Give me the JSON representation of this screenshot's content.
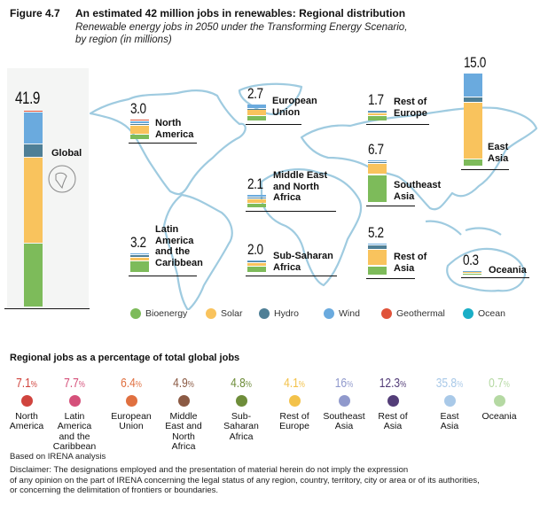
{
  "figure_label": "Figure 4.7",
  "title": "An estimated 42 million jobs in renewables: Regional distribution",
  "subtitle_line1": "Renewable energy jobs in 2050 under the Transforming Energy Scenario,",
  "subtitle_line2": "by region (in millions)",
  "colors": {
    "Bioenergy": "#7dbb5a",
    "Solar": "#f9c35d",
    "Hydro": "#4f7f96",
    "Wind": "#6aaade",
    "Geothermal": "#e0533a",
    "Ocean": "#1aaec6"
  },
  "chart_data": [
    {
      "type": "bar",
      "stacked": true,
      "unit": "millions",
      "series_order": [
        "Bioenergy",
        "Solar",
        "Hydro",
        "Wind",
        "Geothermal",
        "Ocean"
      ],
      "regions": [
        {
          "name": "Global",
          "total": "41.9",
          "values": {
            "Bioenergy": 13.6,
            "Solar": 18.3,
            "Hydro": 2.8,
            "Wind": 6.8,
            "Geothermal": 0.4,
            "Ocean": 0
          }
        },
        {
          "name": "North America",
          "total": "3.0",
          "values": {
            "Bioenergy": 0.9,
            "Solar": 1.4,
            "Hydro": 0.1,
            "Wind": 0.5,
            "Geothermal": 0.1,
            "Ocean": 0
          }
        },
        {
          "name": "Latin America and the Caribbean",
          "total": "3.2",
          "values": {
            "Bioenergy": 1.8,
            "Solar": 0.6,
            "Hydro": 0.5,
            "Wind": 0.3,
            "Geothermal": 0,
            "Ocean": 0
          }
        },
        {
          "name": "European Union",
          "total": "2.7",
          "values": {
            "Bioenergy": 0.9,
            "Solar": 0.9,
            "Hydro": 0.2,
            "Wind": 0.7,
            "Geothermal": 0,
            "Ocean": 0
          }
        },
        {
          "name": "Rest of Europe",
          "total": "1.7",
          "values": {
            "Bioenergy": 0.9,
            "Solar": 0.4,
            "Hydro": 0.2,
            "Wind": 0.2,
            "Geothermal": 0,
            "Ocean": 0
          }
        },
        {
          "name": "Middle East and North Africa",
          "total": "2.1",
          "values": {
            "Bioenergy": 0.7,
            "Solar": 0.7,
            "Hydro": 0.3,
            "Wind": 0.4,
            "Geothermal": 0,
            "Ocean": 0
          }
        },
        {
          "name": "Sub-Saharan Africa",
          "total": "2.0",
          "values": {
            "Bioenergy": 1.0,
            "Solar": 0.6,
            "Hydro": 0.2,
            "Wind": 0.2,
            "Geothermal": 0,
            "Ocean": 0
          }
        },
        {
          "name": "Southeast Asia",
          "total": "6.7",
          "values": {
            "Bioenergy": 4.5,
            "Solar": 1.8,
            "Hydro": 0.3,
            "Wind": 0.1,
            "Geothermal": 0,
            "Ocean": 0
          }
        },
        {
          "name": "Rest of Asia",
          "total": "5.2",
          "values": {
            "Bioenergy": 1.5,
            "Solar": 2.6,
            "Hydro": 0.7,
            "Wind": 0.4,
            "Geothermal": 0,
            "Ocean": 0
          }
        },
        {
          "name": "East Asia",
          "total": "15.0",
          "values": {
            "Bioenergy": 1.2,
            "Solar": 9.1,
            "Hydro": 0.8,
            "Wind": 3.9,
            "Geothermal": 0,
            "Ocean": 0
          }
        },
        {
          "name": "Oceania",
          "total": "0.3",
          "values": {
            "Bioenergy": 0.05,
            "Solar": 0.2,
            "Hydro": 0,
            "Wind": 0.05,
            "Geothermal": 0,
            "Ocean": 0
          }
        }
      ],
      "legend": [
        "Bioenergy",
        "Solar",
        "Hydro",
        "Wind",
        "Geothermal",
        "Ocean"
      ]
    },
    {
      "type": "table",
      "title": "Regional jobs as a percentage of total global jobs",
      "items": [
        {
          "name": "North America",
          "value": "7.1",
          "color": "#d0443e"
        },
        {
          "name": "Latin America and the Caribbean",
          "value": "7.7",
          "color": "#d5507a"
        },
        {
          "name": "European Union",
          "value": "6.4",
          "color": "#e07040"
        },
        {
          "name": "Middle East and North Africa",
          "value": "4.9",
          "color": "#8b5a44"
        },
        {
          "name": "Sub-Saharan Africa",
          "value": "4.8",
          "color": "#6e8d3a"
        },
        {
          "name": "Rest of Europe",
          "value": "4.1",
          "color": "#f3c24a"
        },
        {
          "name": "Southeast Asia",
          "value": "16",
          "color": "#9099cc"
        },
        {
          "name": "Rest of Asia",
          "value": "12.3",
          "color": "#533d78"
        },
        {
          "name": "East Asia",
          "value": "35.8",
          "color": "#a9c9e8"
        },
        {
          "name": "Oceania",
          "value": "0.7",
          "color": "#b5d9a3"
        }
      ]
    }
  ],
  "labels": {
    "global": "Global",
    "na": [
      "North",
      "America"
    ],
    "lac": [
      "Latin",
      "America",
      "and the",
      "Caribbean"
    ],
    "eu": [
      "European",
      "Union"
    ],
    "roe": [
      "Rest of",
      "Europe"
    ],
    "mena": [
      "Middle East",
      "and North",
      "Africa"
    ],
    "ssa": [
      "Sub-Saharan",
      "Africa"
    ],
    "sea": [
      "Southeast",
      "Asia"
    ],
    "roa": [
      "Rest of",
      "Asia"
    ],
    "ea": [
      "East",
      "Asia"
    ],
    "oc": [
      "Oceania"
    ]
  },
  "pct_labels": [
    [
      "North",
      "America"
    ],
    [
      "Latin",
      "America",
      "and the",
      "Caribbean"
    ],
    [
      "European",
      "Union"
    ],
    [
      "Middle",
      "East and",
      "North",
      "Africa"
    ],
    [
      "Sub-",
      "Saharan",
      "Africa"
    ],
    [
      "Rest of",
      "Europe"
    ],
    [
      "Southeast",
      "Asia"
    ],
    [
      "Rest of",
      "Asia"
    ],
    [
      "East",
      "Asia"
    ],
    [
      "Oceania"
    ]
  ],
  "percent_sign": "%",
  "footer": {
    "source": "Based on IRENA analysis",
    "disclaimer1": "Disclaimer: The designations employed and the presentation of material herein do not imply the expression",
    "disclaimer2": "of any opinion on the part of IRENA concerning the legal status of any region, country, territory, city or area or of its authorities,",
    "disclaimer3": "or concerning the delimitation of frontiers or boundaries."
  }
}
